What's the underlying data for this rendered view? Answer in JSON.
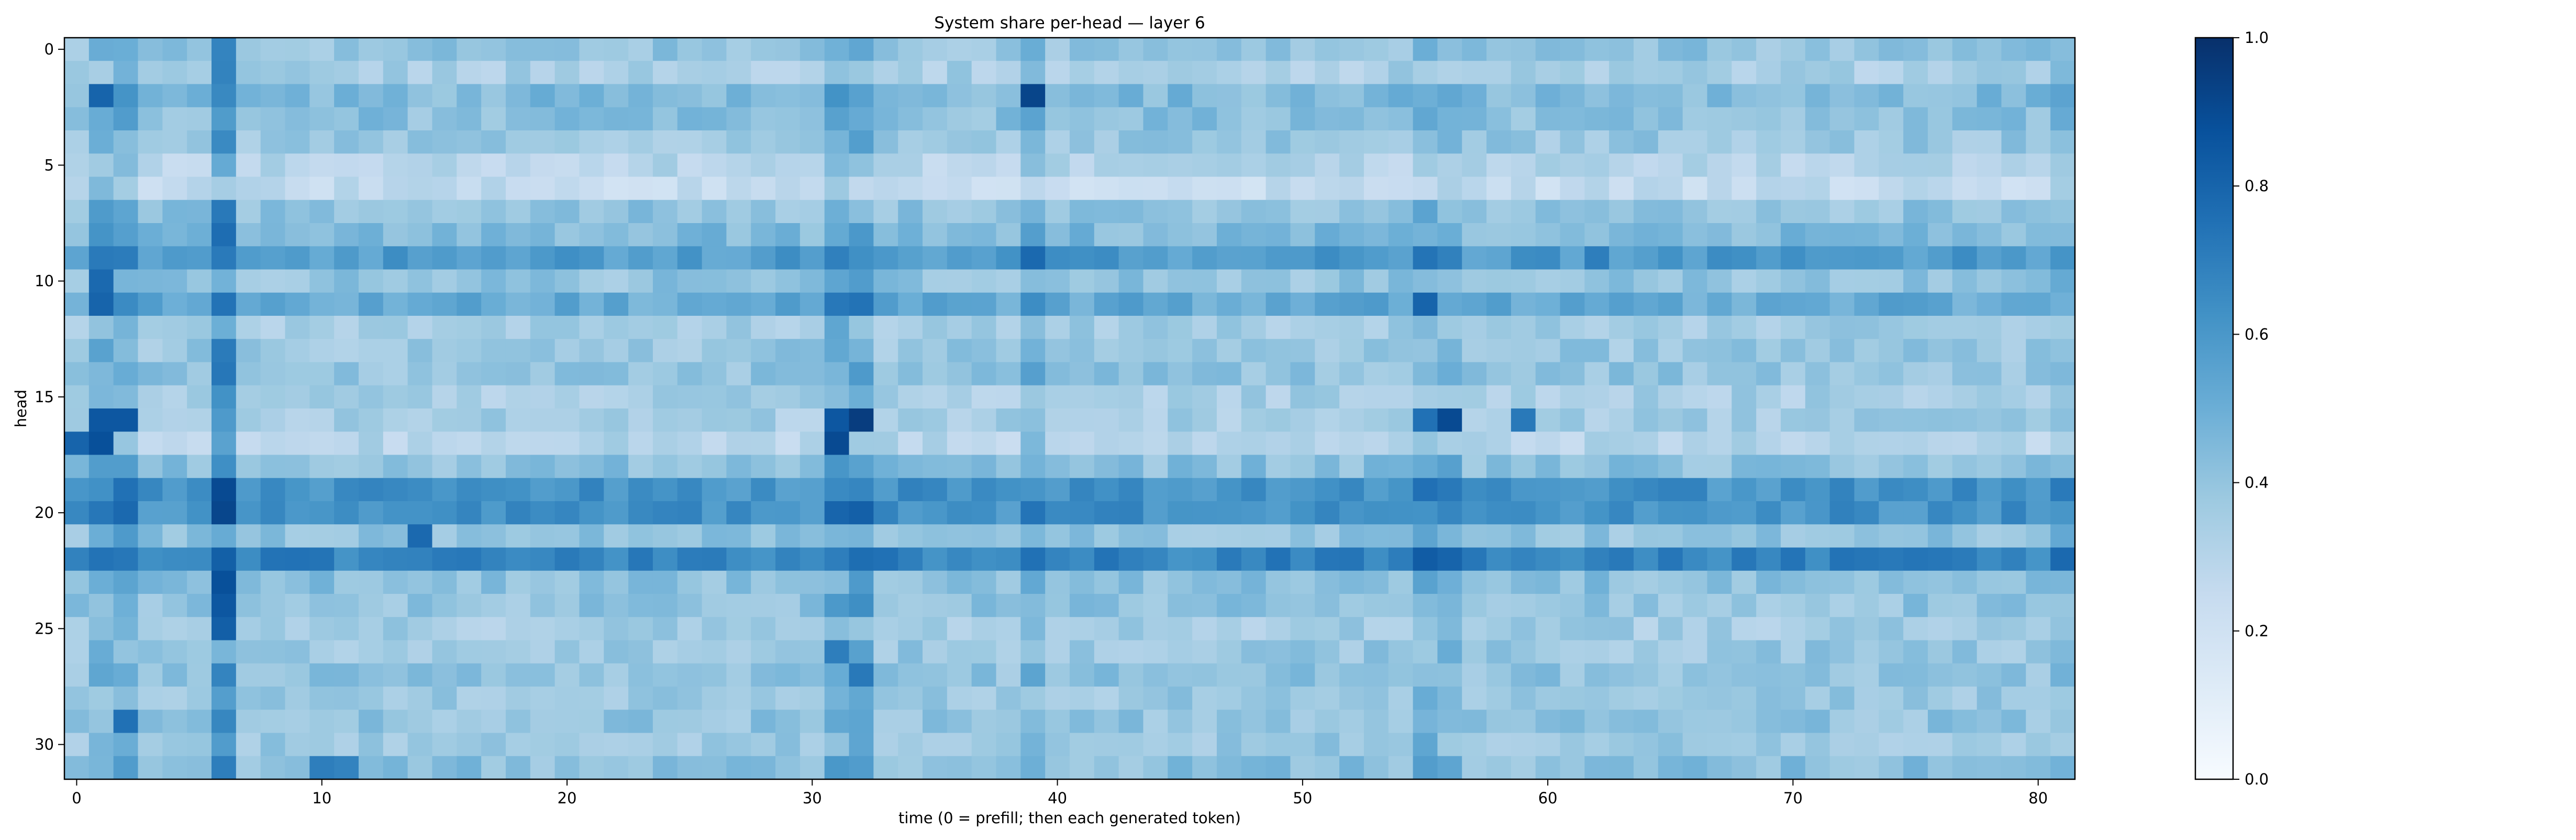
{
  "chart_data": {
    "type": "heatmap",
    "title": "System share per-head — layer 6",
    "xlabel": "time (0 = prefill; then each generated token)",
    "ylabel": "head",
    "x_range": [
      0,
      81
    ],
    "y_range": [
      0,
      31
    ],
    "x_ticks": [
      0,
      10,
      20,
      30,
      40,
      50,
      60,
      70,
      80
    ],
    "y_ticks": [
      0,
      5,
      10,
      15,
      20,
      25,
      30
    ],
    "n_rows": 32,
    "n_cols": 82,
    "colorscale": "Blues",
    "colorbar": {
      "range": [
        0.0,
        1.0
      ],
      "ticks": [
        "0.0",
        "0.2",
        "0.4",
        "0.6",
        "0.8",
        "1.0"
      ]
    },
    "colors": {
      "low": "#f7fbff",
      "high": "#08306b"
    },
    "row_base": [
      0.4,
      0.34,
      0.45,
      0.42,
      0.38,
      0.3,
      0.25,
      0.4,
      0.45,
      0.58,
      0.4,
      0.52,
      0.35,
      0.38,
      0.4,
      0.34,
      0.35,
      0.3,
      0.42,
      0.62,
      0.62,
      0.4,
      0.68,
      0.42,
      0.4,
      0.35,
      0.38,
      0.4,
      0.38,
      0.4,
      0.38,
      0.42
    ],
    "col_boost": {
      "1": 0.1,
      "2": 0.1,
      "6": 0.2,
      "31": 0.1,
      "32": 0.12,
      "39": 0.08,
      "55": 0.08,
      "56": 0.06,
      "81": 0.06
    },
    "hot_cells": [
      [
        16,
        32,
        0.95
      ],
      [
        16,
        31,
        0.85
      ],
      [
        17,
        31,
        0.9
      ],
      [
        16,
        56,
        0.9
      ],
      [
        16,
        55,
        0.75
      ],
      [
        2,
        39,
        0.92
      ],
      [
        16,
        1,
        0.85
      ],
      [
        16,
        2,
        0.85
      ],
      [
        17,
        1,
        0.88
      ],
      [
        17,
        0,
        0.8
      ],
      [
        2,
        1,
        0.8
      ],
      [
        19,
        6,
        0.9
      ],
      [
        23,
        6,
        0.88
      ],
      [
        24,
        6,
        0.85
      ],
      [
        25,
        6,
        0.82
      ],
      [
        11,
        1,
        0.8
      ],
      [
        10,
        1,
        0.78
      ],
      [
        31,
        6,
        0.7
      ],
      [
        29,
        2,
        0.75
      ],
      [
        16,
        59,
        0.72
      ],
      [
        9,
        39,
        0.78
      ],
      [
        11,
        55,
        0.8
      ],
      [
        26,
        31,
        0.7
      ],
      [
        27,
        32,
        0.72
      ],
      [
        21,
        14,
        0.78
      ],
      [
        22,
        39,
        0.75
      ],
      [
        22,
        63,
        0.72
      ],
      [
        9,
        62,
        0.7
      ],
      [
        31,
        10,
        0.7
      ],
      [
        31,
        11,
        0.68
      ]
    ]
  }
}
